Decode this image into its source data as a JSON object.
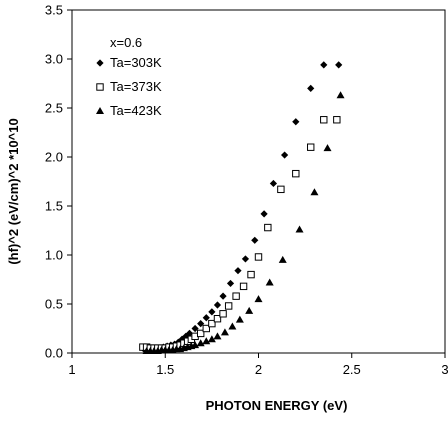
{
  "chart_data": {
    "type": "scatter",
    "title": "",
    "xlabel": "PHOTON ENERGY (eV)",
    "ylabel": "(hf)^2 (eV/cm)^2 *10^10",
    "xlim": [
      1,
      3
    ],
    "ylim": [
      0,
      3.5
    ],
    "xticks": [
      "1",
      "1.5",
      "2",
      "2.5",
      "3"
    ],
    "yticks": [
      "0.0",
      "0.5",
      "1.0",
      "1.5",
      "2.0",
      "2.5",
      "3.0",
      "3.5"
    ],
    "grid": false,
    "legend": {
      "placement": "top-left",
      "header": "x=0.6"
    },
    "series": [
      {
        "name": "Ta=303K",
        "marker": "diamond",
        "color": "#000000",
        "x": [
          1.39,
          1.41,
          1.43,
          1.45,
          1.47,
          1.49,
          1.51,
          1.53,
          1.55,
          1.57,
          1.59,
          1.61,
          1.63,
          1.66,
          1.69,
          1.72,
          1.75,
          1.78,
          1.81,
          1.85,
          1.89,
          1.93,
          1.98,
          2.03,
          2.08,
          2.14,
          2.2,
          2.28,
          2.35,
          2.43
        ],
        "y": [
          0.03,
          0.04,
          0.04,
          0.05,
          0.05,
          0.06,
          0.07,
          0.08,
          0.09,
          0.11,
          0.14,
          0.17,
          0.2,
          0.25,
          0.3,
          0.36,
          0.42,
          0.49,
          0.58,
          0.71,
          0.84,
          0.96,
          1.15,
          1.42,
          1.73,
          2.02,
          2.36,
          2.7,
          2.94,
          2.94
        ]
      },
      {
        "name": "Ta=373K",
        "marker": "square-open",
        "color": "#000000",
        "x": [
          1.38,
          1.4,
          1.42,
          1.44,
          1.46,
          1.48,
          1.5,
          1.52,
          1.54,
          1.56,
          1.58,
          1.6,
          1.62,
          1.64,
          1.66,
          1.69,
          1.72,
          1.75,
          1.78,
          1.81,
          1.84,
          1.88,
          1.92,
          1.96,
          2.0,
          2.05,
          2.12,
          2.2,
          2.28,
          2.35,
          2.42
        ],
        "y": [
          0.06,
          0.06,
          0.05,
          0.05,
          0.05,
          0.05,
          0.05,
          0.06,
          0.06,
          0.07,
          0.08,
          0.1,
          0.12,
          0.14,
          0.17,
          0.2,
          0.25,
          0.3,
          0.35,
          0.4,
          0.48,
          0.58,
          0.68,
          0.8,
          0.98,
          1.28,
          1.67,
          1.83,
          2.1,
          2.38,
          2.38
        ]
      },
      {
        "name": "Ta=423K",
        "marker": "triangle",
        "color": "#000000",
        "x": [
          1.4,
          1.42,
          1.44,
          1.46,
          1.48,
          1.5,
          1.52,
          1.54,
          1.56,
          1.58,
          1.6,
          1.62,
          1.64,
          1.66,
          1.69,
          1.72,
          1.75,
          1.78,
          1.82,
          1.86,
          1.9,
          1.95,
          2.0,
          2.06,
          2.13,
          2.22,
          2.3,
          2.37,
          2.44
        ],
        "y": [
          0.02,
          0.02,
          0.02,
          0.02,
          0.03,
          0.03,
          0.03,
          0.03,
          0.04,
          0.04,
          0.05,
          0.06,
          0.07,
          0.08,
          0.1,
          0.12,
          0.14,
          0.17,
          0.21,
          0.27,
          0.34,
          0.43,
          0.55,
          0.72,
          0.95,
          1.26,
          1.64,
          2.09,
          2.63
        ]
      }
    ]
  }
}
